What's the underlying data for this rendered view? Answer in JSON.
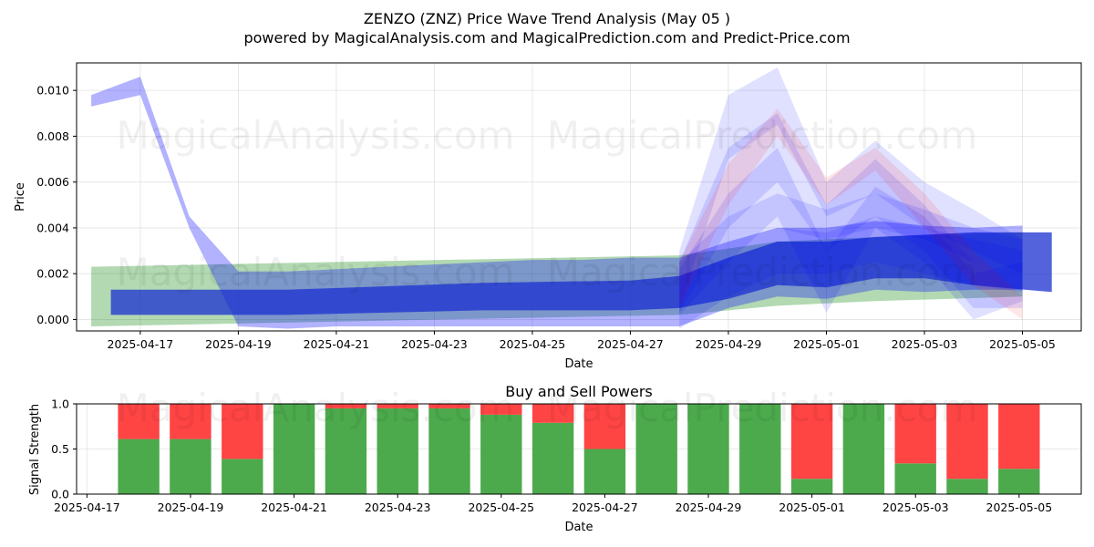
{
  "chart_data": [
    {
      "type": "area",
      "title": "ZENZO (ZNZ) Price Wave Trend Analysis (May 05 )",
      "subtitle": "powered by MagicalAnalysis.com and MagicalPrediction.com and Predict-Price.com",
      "xlabel": "Date",
      "ylabel": "Price",
      "xlim": [
        "2025-04-15.7",
        "2025-05-06.2"
      ],
      "ylim": [
        -0.0005,
        0.0112
      ],
      "x_ticks": [
        "2025-04-17",
        "2025-04-19",
        "2025-04-21",
        "2025-04-23",
        "2025-04-25",
        "2025-04-27",
        "2025-04-29",
        "2025-05-01",
        "2025-05-03",
        "2025-05-05"
      ],
      "y_ticks": [
        "0.000",
        "0.002",
        "0.004",
        "0.006",
        "0.008",
        "0.010"
      ],
      "grid": true,
      "colors": {
        "blue": "#0000ff",
        "green": "#008000",
        "red": "#ff0000",
        "dark_blue": "#1a2fd0"
      },
      "series": [
        {
          "color": "green",
          "opacity": 0.3,
          "x": [
            "2025-04-16",
            "2025-04-28",
            "2025-04-30",
            "2025-05-02",
            "2025-05-05"
          ],
          "low": [
            -0.0003,
            0.0002,
            0.0006,
            0.0008,
            0.001
          ],
          "high": [
            0.0023,
            0.0028,
            0.0034,
            0.0036,
            0.0038
          ]
        },
        {
          "color": "blue",
          "opacity": 0.3,
          "x": [
            "2025-04-16",
            "2025-04-17",
            "2025-04-18",
            "2025-04-19",
            "2025-04-20",
            "2025-04-21",
            "2025-04-22",
            "2025-04-23",
            "2025-04-24",
            "2025-04-25",
            "2025-04-26",
            "2025-04-27",
            "2025-04-28",
            "2025-04-29",
            "2025-04-30",
            "2025-05-01",
            "2025-05-02",
            "2025-05-03",
            "2025-05-04",
            "2025-05-05"
          ],
          "low": [
            0.0093,
            0.0098,
            0.004,
            -0.0003,
            -0.0004,
            -0.0003,
            -0.0003,
            -0.0003,
            -0.0003,
            -0.0003,
            -0.0003,
            -0.0003,
            -0.0003,
            0.0005,
            0.001,
            0.0009,
            0.0013,
            0.0012,
            0.0013,
            0.0013
          ],
          "high": [
            0.0098,
            0.0106,
            0.0045,
            0.0021,
            0.0021,
            0.0022,
            0.0023,
            0.0024,
            0.0025,
            0.0026,
            0.0026,
            0.0027,
            0.0027,
            0.0034,
            0.004,
            0.004,
            0.0043,
            0.0041,
            0.004,
            0.0041
          ]
        },
        {
          "color": "dark_blue",
          "opacity": 0.75,
          "x": [
            "2025-04-16.4",
            "2025-04-20",
            "2025-04-24",
            "2025-04-27",
            "2025-04-28",
            "2025-04-29",
            "2025-04-30",
            "2025-05-01",
            "2025-05-02",
            "2025-05-03",
            "2025-05-04",
            "2025-05-05.6"
          ],
          "low": [
            0.0002,
            0.0002,
            0.0004,
            0.0004,
            0.0005,
            0.0009,
            0.0015,
            0.0014,
            0.0018,
            0.0018,
            0.0015,
            0.0012
          ],
          "high": [
            0.0013,
            0.0013,
            0.0016,
            0.0017,
            0.0019,
            0.0027,
            0.0034,
            0.0034,
            0.0036,
            0.0037,
            0.0038,
            0.0038
          ]
        },
        {
          "color": "blue",
          "opacity": 0.12,
          "x": [
            "2025-04-28",
            "2025-04-29",
            "2025-04-30",
            "2025-05-01",
            "2025-05-02",
            "2025-05-03",
            "2025-05-04",
            "2025-05-05"
          ],
          "low": [
            0.0005,
            0.007,
            0.0085,
            0.0045,
            0.0055,
            0.004,
            0.003,
            0.002
          ],
          "high": [
            0.003,
            0.0098,
            0.011,
            0.006,
            0.0078,
            0.006,
            0.0048,
            0.0035
          ]
        },
        {
          "color": "blue",
          "opacity": 0.12,
          "x": [
            "2025-04-28",
            "2025-04-29",
            "2025-04-30",
            "2025-05-01",
            "2025-05-02",
            "2025-05-03",
            "2025-05-04",
            "2025-05-05"
          ],
          "low": [
            0.0003,
            0.004,
            0.006,
            0.003,
            0.0045,
            0.003,
            0.0005,
            0.0005
          ],
          "high": [
            0.0025,
            0.0075,
            0.009,
            0.005,
            0.007,
            0.005,
            0.0025,
            0.002
          ]
        },
        {
          "color": "blue",
          "opacity": 0.12,
          "x": [
            "2025-04-28",
            "2025-04-29",
            "2025-04-30",
            "2025-05-01",
            "2025-05-02",
            "2025-05-03",
            "2025-05-04",
            "2025-05-05"
          ],
          "low": [
            0.0002,
            0.0025,
            0.0045,
            0.0003,
            0.004,
            0.0025,
            0.0,
            0.0008
          ],
          "high": [
            0.0022,
            0.0055,
            0.0075,
            0.003,
            0.0058,
            0.0045,
            0.002,
            0.0025
          ]
        },
        {
          "color": "red",
          "opacity": 0.1,
          "x": [
            "2025-04-28",
            "2025-04-29",
            "2025-04-30",
            "2025-05-01",
            "2025-05-02",
            "2025-05-03",
            "2025-05-04",
            "2025-05-05"
          ],
          "low": [
            0.0005,
            0.005,
            0.008,
            0.005,
            0.0065,
            0.004,
            0.0015,
            0.0
          ],
          "high": [
            0.0025,
            0.0068,
            0.0092,
            0.0062,
            0.0075,
            0.0055,
            0.003,
            0.001
          ]
        },
        {
          "color": "blue",
          "opacity": 0.12,
          "x": [
            "2025-04-28",
            "2025-04-29",
            "2025-04-30",
            "2025-05-01",
            "2025-05-02",
            "2025-05-03",
            "2025-05-04",
            "2025-05-05"
          ],
          "low": [
            0.001,
            0.003,
            0.004,
            0.0035,
            0.004,
            0.0035,
            0.0025,
            0.002
          ],
          "high": [
            0.0025,
            0.0045,
            0.0055,
            0.0048,
            0.0055,
            0.0048,
            0.004,
            0.0035
          ]
        },
        {
          "color": "blue",
          "opacity": 0.12,
          "x": [
            "2025-04-28",
            "2025-04-29",
            "2025-04-30",
            "2025-05-01",
            "2025-05-02",
            "2025-05-03",
            "2025-05-04",
            "2025-05-05"
          ],
          "low": [
            -0.0004,
            0.001,
            0.002,
            0.002,
            0.0025,
            0.002,
            0.0015,
            0.0012
          ],
          "high": [
            0.001,
            0.003,
            0.004,
            0.0038,
            0.0045,
            0.004,
            0.0035,
            0.003
          ]
        }
      ]
    },
    {
      "type": "bar",
      "title": "Buy and Sell Powers",
      "xlabel": "Date",
      "ylabel": "Signal Strength",
      "ylim": [
        0,
        1
      ],
      "xlim": [
        "2025-04-16.8",
        "2025-05-06.2"
      ],
      "x_ticks": [
        "2025-04-17",
        "2025-04-19",
        "2025-04-21",
        "2025-04-23",
        "2025-04-25",
        "2025-04-27",
        "2025-04-29",
        "2025-05-01",
        "2025-05-03",
        "2025-05-05"
      ],
      "y_ticks": [
        "0.0",
        "0.5",
        "1.0"
      ],
      "grid": true,
      "colors": {
        "buy": "#4caa4c",
        "sell": "#ff4444"
      },
      "categories": [
        "2025-04-18",
        "2025-04-19",
        "2025-04-20",
        "2025-04-21",
        "2025-04-22",
        "2025-04-23",
        "2025-04-24",
        "2025-04-25",
        "2025-04-26",
        "2025-04-27",
        "2025-04-28",
        "2025-04-29",
        "2025-04-30",
        "2025-05-01",
        "2025-05-02",
        "2025-05-03",
        "2025-05-04",
        "2025-05-05"
      ],
      "series": [
        {
          "values": [
            0.61,
            0.61,
            0.39,
            1.0,
            0.95,
            0.95,
            0.95,
            0.88,
            0.79,
            0.5,
            1.0,
            1.0,
            1.0,
            0.17,
            1.0,
            0.34,
            0.17,
            0.28
          ]
        },
        {
          "values": [
            0.39,
            0.39,
            0.61,
            0.0,
            0.05,
            0.05,
            0.05,
            0.12,
            0.21,
            0.5,
            0.0,
            0.0,
            0.0,
            0.83,
            0.0,
            0.66,
            0.83,
            0.72
          ]
        }
      ]
    }
  ],
  "watermarks": {
    "top_left": "MagicalAnalysis.com",
    "top_right": "MagicalPrediction.com"
  }
}
